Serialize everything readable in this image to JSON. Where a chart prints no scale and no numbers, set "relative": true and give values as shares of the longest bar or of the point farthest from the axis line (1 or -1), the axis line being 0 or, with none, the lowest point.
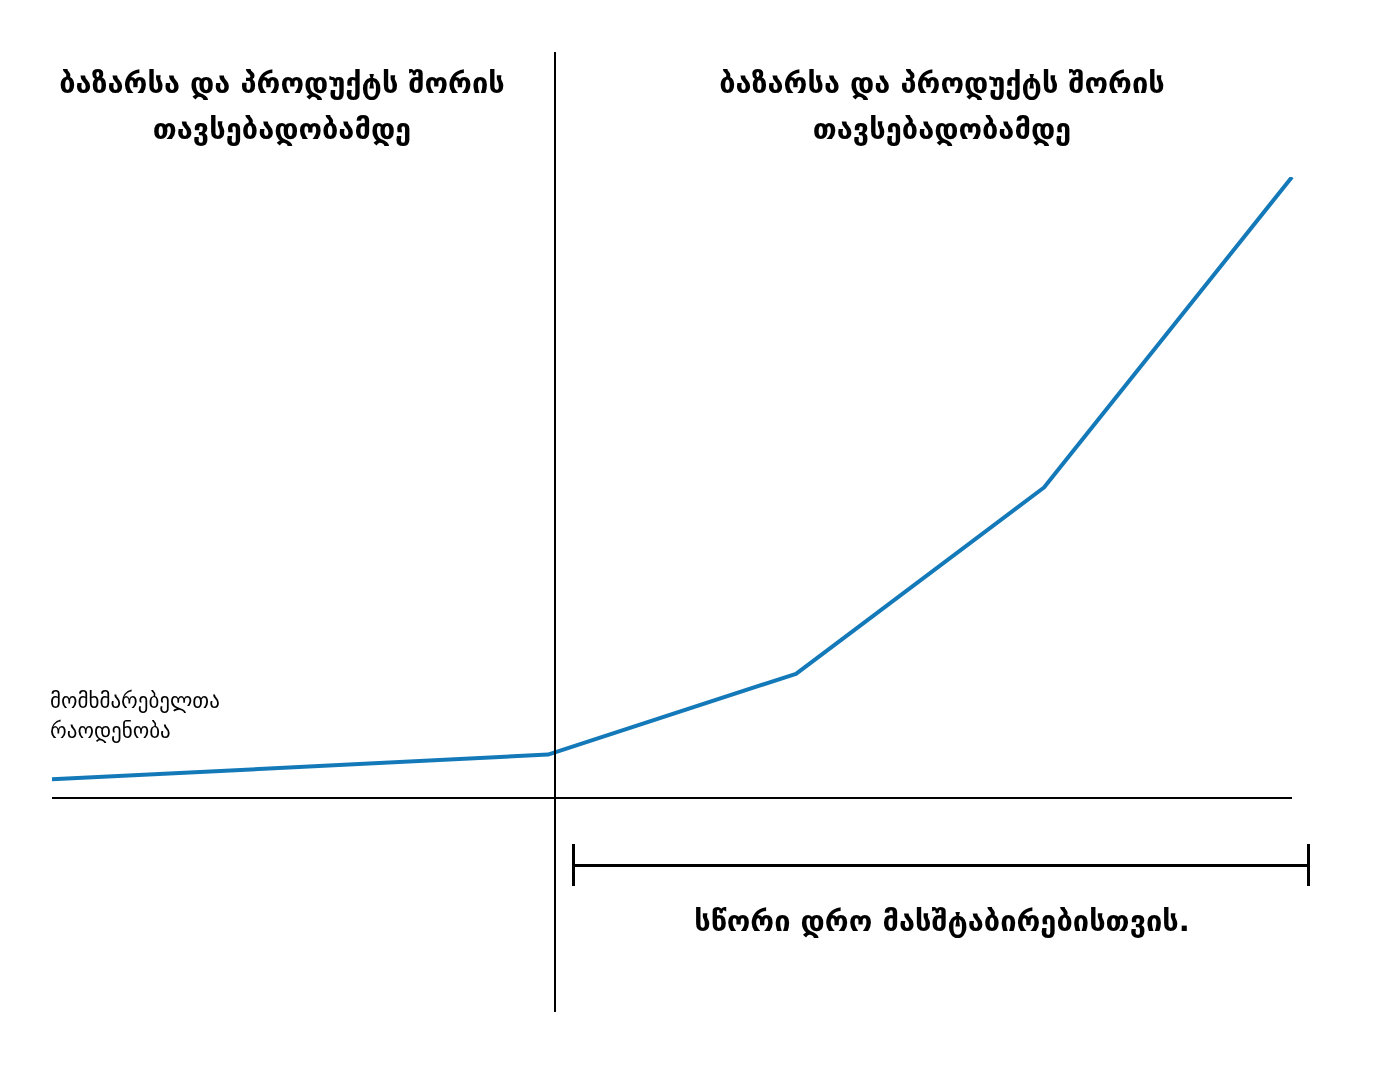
{
  "chart_data": {
    "type": "line",
    "relative": true,
    "ylabel": "მომხმარებელთა რაოდენობა",
    "categories": [
      null,
      null,
      null,
      null,
      null,
      null
    ],
    "series": [
      {
        "color": "#1479b8",
        "values": [
          0.03,
          null,
          0.07,
          0.2,
          0.5,
          1
        ]
      }
    ],
    "annotations": [
      "ბაზარსა და პროდუქტს შორის თავსებადობამდე",
      "ბაზარსა და პროდუქტს შორის თავსებადობამდე",
      "სწორი დრო მასშტაბირებისთვის."
    ]
  }
}
